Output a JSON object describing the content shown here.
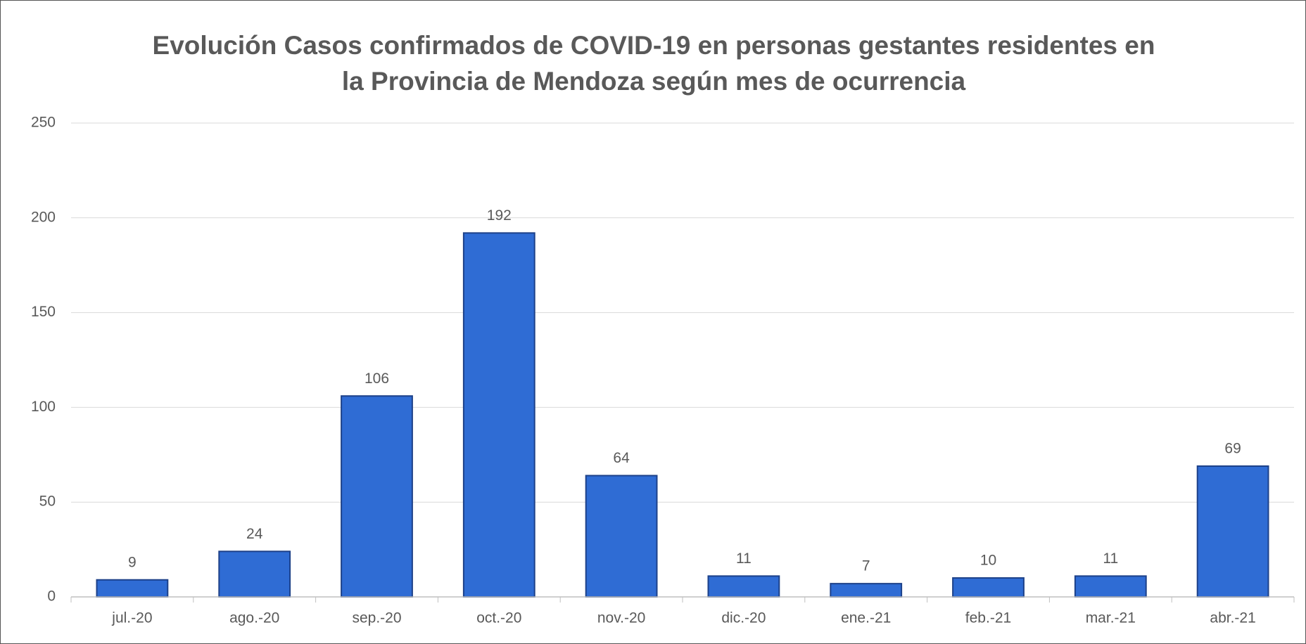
{
  "chart_data": {
    "type": "bar",
    "title": "Evolución Casos confirmados de COVID-19 en personas gestantes residentes en la Provincia de Mendoza según mes de ocurrencia",
    "categories": [
      "jul.-20",
      "ago.-20",
      "sep.-20",
      "oct.-20",
      "nov.-20",
      "dic.-20",
      "ene.-21",
      "feb.-21",
      "mar.-21",
      "abr.-21"
    ],
    "values": [
      9,
      24,
      106,
      192,
      64,
      11,
      7,
      10,
      11,
      69
    ],
    "color": "#2f6cd4",
    "ylim": [
      0,
      250
    ],
    "yticks": [
      0,
      50,
      100,
      150,
      200,
      250
    ],
    "grid": true
  }
}
